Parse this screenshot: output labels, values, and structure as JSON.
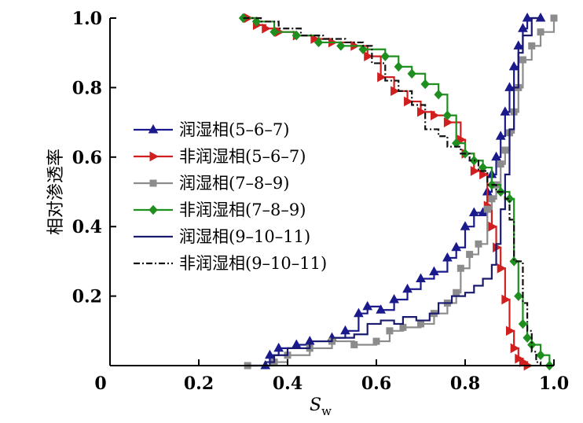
{
  "chart_data": {
    "type": "line",
    "xlabel": "S",
    "xlabel_sub": "w",
    "ylabel": "相对渗透率",
    "xlim": [
      0,
      1.0
    ],
    "ylim": [
      0,
      1.0
    ],
    "xticks": [
      "0",
      "0.2",
      "0.4",
      "0.6",
      "0.8",
      "1.0"
    ],
    "xtick_values": [
      0,
      0.2,
      0.4,
      0.6,
      0.8,
      1.0
    ],
    "yticks": [
      "0.2",
      "0.4",
      "0.6",
      "0.8",
      "1.0"
    ],
    "ytick_values": [
      0.2,
      0.4,
      0.6,
      0.8,
      1.0
    ],
    "grid": false,
    "legend_position": "left-middle",
    "series": [
      {
        "name": "润湿相(5–6–7)",
        "color": "#1a1a8c",
        "marker": "triangle",
        "style": "solid",
        "points": [
          [
            0.35,
            0.0
          ],
          [
            0.36,
            0.03
          ],
          [
            0.38,
            0.05
          ],
          [
            0.42,
            0.06
          ],
          [
            0.45,
            0.07
          ],
          [
            0.5,
            0.08
          ],
          [
            0.53,
            0.1
          ],
          [
            0.56,
            0.15
          ],
          [
            0.58,
            0.17
          ],
          [
            0.61,
            0.16
          ],
          [
            0.64,
            0.19
          ],
          [
            0.67,
            0.22
          ],
          [
            0.7,
            0.25
          ],
          [
            0.73,
            0.27
          ],
          [
            0.76,
            0.31
          ],
          [
            0.78,
            0.34
          ],
          [
            0.8,
            0.4
          ],
          [
            0.82,
            0.44
          ],
          [
            0.84,
            0.44
          ],
          [
            0.85,
            0.5
          ],
          [
            0.86,
            0.55
          ],
          [
            0.87,
            0.6
          ],
          [
            0.88,
            0.66
          ],
          [
            0.89,
            0.73
          ],
          [
            0.9,
            0.8
          ],
          [
            0.91,
            0.86
          ],
          [
            0.92,
            0.92
          ],
          [
            0.93,
            0.97
          ],
          [
            0.94,
            1.0
          ],
          [
            0.97,
            1.0
          ]
        ]
      },
      {
        "name": "非润湿相(5–6–7)",
        "color": "#d11f1f",
        "marker": "triangle-right",
        "style": "solid",
        "points": [
          [
            0.31,
            1.0
          ],
          [
            0.33,
            0.98
          ],
          [
            0.35,
            0.97
          ],
          [
            0.38,
            0.96
          ],
          [
            0.42,
            0.95
          ],
          [
            0.46,
            0.94
          ],
          [
            0.5,
            0.93
          ],
          [
            0.55,
            0.92
          ],
          [
            0.58,
            0.89
          ],
          [
            0.61,
            0.83
          ],
          [
            0.64,
            0.79
          ],
          [
            0.67,
            0.76
          ],
          [
            0.7,
            0.73
          ],
          [
            0.73,
            0.72
          ],
          [
            0.76,
            0.7
          ],
          [
            0.79,
            0.65
          ],
          [
            0.8,
            0.61
          ],
          [
            0.82,
            0.56
          ],
          [
            0.84,
            0.55
          ],
          [
            0.85,
            0.46
          ],
          [
            0.86,
            0.4
          ],
          [
            0.87,
            0.34
          ],
          [
            0.88,
            0.28
          ],
          [
            0.89,
            0.19
          ],
          [
            0.9,
            0.1
          ],
          [
            0.91,
            0.05
          ],
          [
            0.92,
            0.02
          ],
          [
            0.93,
            0.01
          ],
          [
            0.94,
            0.0
          ]
        ]
      },
      {
        "name": "润湿相(7–8–9)",
        "color": "#8c8c8c",
        "marker": "square",
        "style": "solid",
        "points": [
          [
            0.31,
            0.0
          ],
          [
            0.37,
            0.01
          ],
          [
            0.4,
            0.03
          ],
          [
            0.45,
            0.05
          ],
          [
            0.5,
            0.07
          ],
          [
            0.55,
            0.06
          ],
          [
            0.6,
            0.07
          ],
          [
            0.63,
            0.1
          ],
          [
            0.66,
            0.11
          ],
          [
            0.7,
            0.12
          ],
          [
            0.73,
            0.15
          ],
          [
            0.76,
            0.18
          ],
          [
            0.78,
            0.21
          ],
          [
            0.79,
            0.28
          ],
          [
            0.81,
            0.32
          ],
          [
            0.83,
            0.35
          ],
          [
            0.85,
            0.45
          ],
          [
            0.86,
            0.48
          ],
          [
            0.87,
            0.52
          ],
          [
            0.88,
            0.58
          ],
          [
            0.89,
            0.62
          ],
          [
            0.9,
            0.67
          ],
          [
            0.91,
            0.73
          ],
          [
            0.92,
            0.8
          ],
          [
            0.93,
            0.88
          ],
          [
            0.95,
            0.92
          ],
          [
            0.97,
            0.96
          ],
          [
            1.0,
            1.0
          ]
        ]
      },
      {
        "name": "非润湿相(7–8–9)",
        "color": "#1f8f1f",
        "marker": "diamond",
        "style": "solid",
        "points": [
          [
            0.3,
            1.0
          ],
          [
            0.33,
            0.99
          ],
          [
            0.37,
            0.96
          ],
          [
            0.42,
            0.95
          ],
          [
            0.47,
            0.93
          ],
          [
            0.52,
            0.92
          ],
          [
            0.57,
            0.91
          ],
          [
            0.62,
            0.89
          ],
          [
            0.65,
            0.86
          ],
          [
            0.68,
            0.84
          ],
          [
            0.71,
            0.81
          ],
          [
            0.74,
            0.78
          ],
          [
            0.76,
            0.72
          ],
          [
            0.78,
            0.64
          ],
          [
            0.8,
            0.61
          ],
          [
            0.82,
            0.59
          ],
          [
            0.84,
            0.57
          ],
          [
            0.86,
            0.52
          ],
          [
            0.88,
            0.5
          ],
          [
            0.9,
            0.48
          ],
          [
            0.91,
            0.3
          ],
          [
            0.92,
            0.2
          ],
          [
            0.93,
            0.12
          ],
          [
            0.94,
            0.08
          ],
          [
            0.95,
            0.06
          ],
          [
            0.97,
            0.03
          ],
          [
            0.99,
            0.0
          ]
        ]
      },
      {
        "name": "润湿相(9–10–11)",
        "color": "#1a1a6e",
        "marker": "none",
        "style": "solid",
        "points": [
          [
            0.31,
            0.0
          ],
          [
            0.35,
            0.01
          ],
          [
            0.37,
            0.03
          ],
          [
            0.4,
            0.05
          ],
          [
            0.45,
            0.07
          ],
          [
            0.5,
            0.08
          ],
          [
            0.55,
            0.09
          ],
          [
            0.58,
            0.12
          ],
          [
            0.61,
            0.13
          ],
          [
            0.64,
            0.12
          ],
          [
            0.66,
            0.14
          ],
          [
            0.69,
            0.13
          ],
          [
            0.72,
            0.15
          ],
          [
            0.74,
            0.18
          ],
          [
            0.77,
            0.2
          ],
          [
            0.8,
            0.21
          ],
          [
            0.82,
            0.23
          ],
          [
            0.84,
            0.25
          ],
          [
            0.86,
            0.29
          ],
          [
            0.87,
            0.35
          ],
          [
            0.88,
            0.45
          ],
          [
            0.89,
            0.55
          ],
          [
            0.9,
            0.68
          ],
          [
            0.91,
            0.8
          ],
          [
            0.92,
            0.9
          ],
          [
            0.93,
            0.95
          ],
          [
            0.95,
            1.0
          ],
          [
            0.97,
            1.0
          ]
        ]
      },
      {
        "name": "非润湿相(9–10–11)",
        "color": "#111111",
        "marker": "none",
        "style": "dashdot",
        "points": [
          [
            0.3,
            1.0
          ],
          [
            0.34,
            0.99
          ],
          [
            0.38,
            0.97
          ],
          [
            0.43,
            0.95
          ],
          [
            0.48,
            0.94
          ],
          [
            0.53,
            0.93
          ],
          [
            0.57,
            0.92
          ],
          [
            0.59,
            0.87
          ],
          [
            0.62,
            0.82
          ],
          [
            0.65,
            0.79
          ],
          [
            0.68,
            0.75
          ],
          [
            0.71,
            0.68
          ],
          [
            0.74,
            0.66
          ],
          [
            0.76,
            0.63
          ],
          [
            0.79,
            0.61
          ],
          [
            0.81,
            0.59
          ],
          [
            0.83,
            0.56
          ],
          [
            0.85,
            0.52
          ],
          [
            0.87,
            0.5
          ],
          [
            0.89,
            0.48
          ],
          [
            0.9,
            0.42
          ],
          [
            0.91,
            0.3
          ],
          [
            0.93,
            0.18
          ],
          [
            0.94,
            0.1
          ],
          [
            0.95,
            0.04
          ],
          [
            0.96,
            0.01
          ],
          [
            0.97,
            0.0
          ]
        ]
      }
    ]
  }
}
